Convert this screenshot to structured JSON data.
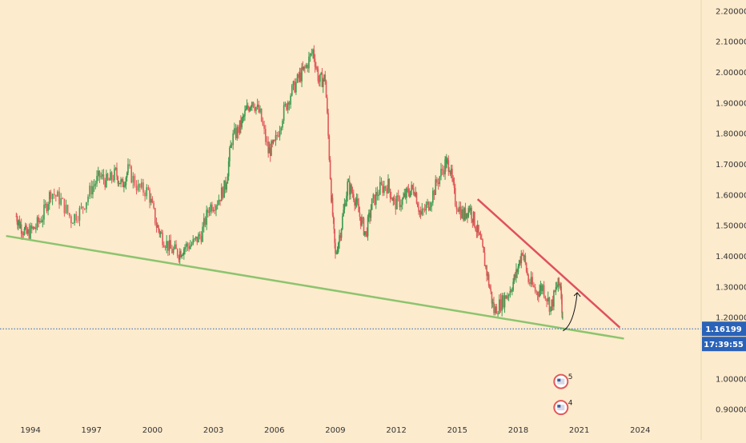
{
  "colors": {
    "background": "#fdebcd",
    "up_candle": "#3c9a4e",
    "down_candle": "#e05a5a",
    "support_line": "#8cc46e",
    "resistance_line": "#e0505f",
    "price_line": "#2a62b8",
    "price_badge": "#2a62b8",
    "axis_text": "#333333",
    "grid": "#f1dcb9"
  },
  "chart_data": {
    "type": "candlestick",
    "title": "",
    "xlabel": "",
    "ylabel": "",
    "x_range": [
      1992.5,
      2027.0
    ],
    "y_range": [
      0.865,
      2.235
    ],
    "grid": false,
    "y_ticks": [
      "2.20000",
      "2.10000",
      "2.00000",
      "1.90000",
      "1.80000",
      "1.70000",
      "1.60000",
      "1.50000",
      "1.40000",
      "1.30000",
      "1.20000",
      "1.10000",
      "1.00000",
      "0.90000"
    ],
    "x_ticks": [
      "1994",
      "1997",
      "2000",
      "2003",
      "2006",
      "2009",
      "2012",
      "2015",
      "2018",
      "2021",
      "2024"
    ],
    "price_trace": [
      [
        1993.3,
        1.53
      ],
      [
        1993.5,
        1.5
      ],
      [
        1993.8,
        1.47
      ],
      [
        1994.2,
        1.49
      ],
      [
        1994.6,
        1.53
      ],
      [
        1995.0,
        1.61
      ],
      [
        1995.5,
        1.58
      ],
      [
        1996.0,
        1.52
      ],
      [
        1996.5,
        1.55
      ],
      [
        1997.0,
        1.62
      ],
      [
        1997.4,
        1.66
      ],
      [
        1997.8,
        1.64
      ],
      [
        1998.2,
        1.67
      ],
      [
        1998.5,
        1.63
      ],
      [
        1998.8,
        1.68
      ],
      [
        1999.3,
        1.62
      ],
      [
        1999.8,
        1.61
      ],
      [
        2000.2,
        1.5
      ],
      [
        2000.5,
        1.46
      ],
      [
        2000.9,
        1.42
      ],
      [
        2001.3,
        1.41
      ],
      [
        2001.6,
        1.43
      ],
      [
        2002.0,
        1.44
      ],
      [
        2002.4,
        1.47
      ],
      [
        2002.8,
        1.56
      ],
      [
        2003.2,
        1.58
      ],
      [
        2003.6,
        1.63
      ],
      [
        2003.9,
        1.78
      ],
      [
        2004.3,
        1.82
      ],
      [
        2004.6,
        1.87
      ],
      [
        2004.9,
        1.91
      ],
      [
        2005.3,
        1.86
      ],
      [
        2005.7,
        1.74
      ],
      [
        2006.0,
        1.76
      ],
      [
        2006.4,
        1.86
      ],
      [
        2006.8,
        1.93
      ],
      [
        2007.2,
        1.98
      ],
      [
        2007.5,
        2.01
      ],
      [
        2007.9,
        2.07
      ],
      [
        2008.2,
        1.97
      ],
      [
        2008.5,
        1.98
      ],
      [
        2008.8,
        1.6
      ],
      [
        2009.0,
        1.4
      ],
      [
        2009.3,
        1.5
      ],
      [
        2009.6,
        1.63
      ],
      [
        2009.9,
        1.6
      ],
      [
        2010.2,
        1.53
      ],
      [
        2010.5,
        1.47
      ],
      [
        2010.8,
        1.57
      ],
      [
        2011.2,
        1.62
      ],
      [
        2011.6,
        1.63
      ],
      [
        2011.9,
        1.57
      ],
      [
        2012.3,
        1.58
      ],
      [
        2012.6,
        1.61
      ],
      [
        2012.9,
        1.62
      ],
      [
        2013.2,
        1.53
      ],
      [
        2013.6,
        1.57
      ],
      [
        2014.0,
        1.64
      ],
      [
        2014.4,
        1.7
      ],
      [
        2014.6,
        1.7
      ],
      [
        2014.9,
        1.58
      ],
      [
        2015.3,
        1.53
      ],
      [
        2015.6,
        1.56
      ],
      [
        2015.9,
        1.5
      ],
      [
        2016.2,
        1.43
      ],
      [
        2016.5,
        1.33
      ],
      [
        2016.8,
        1.22
      ],
      [
        2017.2,
        1.25
      ],
      [
        2017.6,
        1.29
      ],
      [
        2017.9,
        1.34
      ],
      [
        2018.2,
        1.42
      ],
      [
        2018.5,
        1.32
      ],
      [
        2018.9,
        1.28
      ],
      [
        2019.2,
        1.3
      ],
      [
        2019.6,
        1.23
      ],
      [
        2019.9,
        1.3
      ],
      [
        2020.1,
        1.31
      ],
      [
        2020.2,
        1.16
      ]
    ],
    "support_line": {
      "from": [
        1992.8,
        1.465
      ],
      "to": [
        2023.2,
        1.13
      ]
    },
    "resistance_line": {
      "from": [
        2016.0,
        1.585
      ],
      "to": [
        2023.0,
        1.166
      ]
    },
    "projection_arrow": {
      "from": [
        2020.2,
        1.155
      ],
      "to": [
        2020.9,
        1.28
      ]
    },
    "current_price": {
      "value": 1.16199,
      "label": "1.16199",
      "countdown": "17:39:55"
    },
    "event_markers": [
      {
        "x": 2020.1,
        "y": 0.99,
        "count": "5"
      },
      {
        "x": 2020.1,
        "y": 0.905,
        "count": "4"
      }
    ]
  }
}
